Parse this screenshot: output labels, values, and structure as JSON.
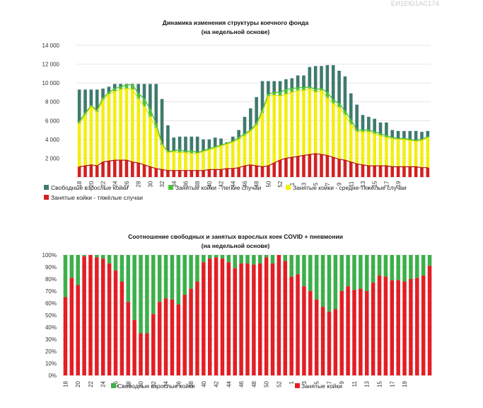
{
  "page_code": "ЕИ1ЕЮ1АС174",
  "chart_data": [
    {
      "type": "bar",
      "stacked": true,
      "title": "Динамика изменения структуры коечного фонда",
      "subtitle": "(на недельной основе)",
      "ylim": [
        0,
        14000
      ],
      "yticks": [
        "14 000",
        "12 000",
        "10 000",
        "8 000",
        "6 000",
        "4 000",
        "2 000",
        ""
      ],
      "ytick_values": [
        14000,
        12000,
        10000,
        8000,
        6000,
        4000,
        2000,
        0
      ],
      "xtick_labels": [
        "18",
        "20",
        "22",
        "24",
        "26",
        "28",
        "30",
        "32",
        "34",
        "36",
        "38",
        "40",
        "42",
        "44",
        "46",
        "48",
        "50",
        "52",
        "1",
        "3",
        "5",
        "7",
        "9",
        "11",
        "13",
        "15",
        "17",
        "19"
      ],
      "legend": [
        {
          "name": "Свободные взрослые койки",
          "color": "#3f7a6d"
        },
        {
          "name": "Занятые койки - легкие случаи",
          "color": "#4cc23a"
        },
        {
          "name": "Занятые койки - средне-тяжёлые случаи",
          "color": "#f2ef10"
        },
        {
          "name": "Занятые койки - тяжёлые случаи",
          "color": "#d42020"
        }
      ],
      "total": [
        9300,
        9300,
        9300,
        9300,
        9400,
        9600,
        9900,
        9900,
        9900,
        9900,
        9900,
        9900,
        9900,
        9900,
        8300,
        5500,
        4200,
        4300,
        4300,
        4300,
        4300,
        4000,
        4000,
        4200,
        4100,
        3700,
        4300,
        5000,
        6400,
        7300,
        8500,
        10200,
        10200,
        10200,
        10200,
        10400,
        10500,
        10800,
        10800,
        11700,
        11800,
        11800,
        11900,
        11900,
        11300,
        10700,
        8900,
        7700,
        6600,
        6400,
        6200,
        5800,
        5800,
        5000,
        4900,
        4900,
        4900,
        4900,
        4800,
        4900
      ],
      "light_top": [
        5900,
        6800,
        7600,
        7100,
        8400,
        9000,
        9400,
        9600,
        9800,
        9800,
        8900,
        8300,
        7200,
        5700,
        3500,
        2700,
        2800,
        2900,
        2700,
        2800,
        2600,
        2800,
        3000,
        3200,
        3400,
        3600,
        3800,
        4200,
        4600,
        5000,
        5700,
        7100,
        8800,
        9000,
        9000,
        9300,
        9400,
        9500,
        9500,
        9600,
        9300,
        9400,
        9000,
        8200,
        7800,
        7000,
        6100,
        5000,
        5000,
        5000,
        4800,
        4600,
        4400,
        4200,
        4100,
        4100,
        4000,
        3900,
        4000,
        4300
      ],
      "medium_top": [
        5700,
        6600,
        7500,
        6900,
        8200,
        8800,
        9100,
        9300,
        9400,
        9300,
        8300,
        7500,
        6400,
        5200,
        3400,
        2600,
        2700,
        2600,
        2600,
        2500,
        2500,
        2700,
        2900,
        3100,
        3300,
        3500,
        3700,
        4000,
        4400,
        4900,
        5500,
        6800,
        8600,
        8700,
        8600,
        8800,
        9000,
        9200,
        9200,
        9400,
        9000,
        9200,
        8400,
        7800,
        7400,
        6600,
        5600,
        4800,
        4800,
        4800,
        4600,
        4400,
        4200,
        4100,
        4000,
        4000,
        3900,
        3800,
        3900,
        4200
      ],
      "severe": [
        1100,
        1200,
        1300,
        1200,
        1600,
        1700,
        1800,
        1800,
        1800,
        1600,
        1500,
        1300,
        1100,
        900,
        800,
        700,
        700,
        700,
        700,
        700,
        700,
        700,
        800,
        800,
        800,
        900,
        900,
        1000,
        1200,
        1300,
        1200,
        1100,
        1200,
        1500,
        1800,
        2000,
        2100,
        2200,
        2300,
        2400,
        2500,
        2400,
        2300,
        2100,
        1900,
        1800,
        1600,
        1400,
        1300,
        1200,
        1200,
        1200,
        1200,
        1100,
        1100,
        1100,
        1100,
        1100,
        1000,
        1000
      ]
    },
    {
      "type": "bar",
      "stacked": true,
      "percent": true,
      "title": "Соотношение свободных и занятых взрослых коек COVID + пневмонии",
      "subtitle": "(на недельной основе)",
      "ylim": [
        0,
        100
      ],
      "yticks": [
        "100%",
        "90%",
        "80%",
        "70%",
        "60%",
        "50%",
        "40%",
        "30%",
        "20%",
        "10%",
        "0%"
      ],
      "ytick_values": [
        100,
        90,
        80,
        70,
        60,
        50,
        40,
        30,
        20,
        10,
        0
      ],
      "xtick_labels": [
        "18",
        "20",
        "22",
        "24",
        "26",
        "28",
        "30",
        "32",
        "34",
        "36",
        "38",
        "40",
        "42",
        "44",
        "46",
        "48",
        "50",
        "52",
        "1",
        "3",
        "5",
        "7",
        "9",
        "11",
        "13",
        "15",
        "17",
        "19"
      ],
      "legend": [
        {
          "name": "Свободные взрослые койки",
          "color": "#3cb04a"
        },
        {
          "name": "Занятые койки",
          "color": "#e31e24"
        }
      ],
      "occupied_pct": [
        65,
        81,
        75,
        99,
        100,
        98,
        97,
        93,
        87,
        78,
        61,
        46,
        35,
        35,
        51,
        61,
        64,
        63,
        59,
        67,
        72,
        78,
        94,
        97,
        98,
        97,
        94,
        89,
        93,
        93,
        92,
        93,
        98,
        93,
        100,
        95,
        82,
        84,
        74,
        70,
        63,
        57,
        53,
        55,
        70,
        74,
        71,
        72,
        70,
        77,
        83,
        82,
        79,
        79,
        78,
        80,
        81,
        83,
        91
      ]
    }
  ]
}
